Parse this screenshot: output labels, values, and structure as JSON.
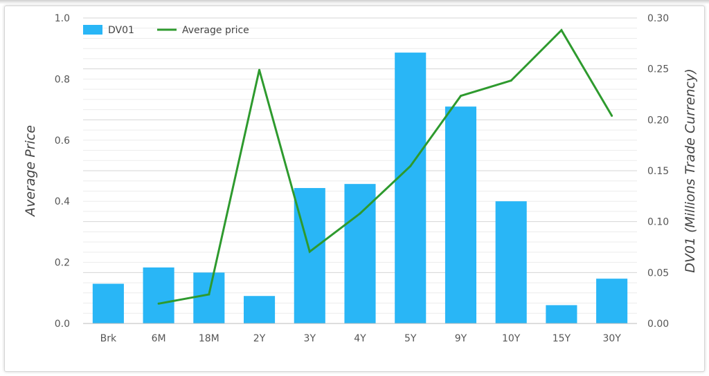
{
  "chart_data": {
    "type": "bar",
    "categories": [
      "Brk",
      "6M",
      "18M",
      "2Y",
      "3Y",
      "4Y",
      "5Y",
      "9Y",
      "10Y",
      "15Y",
      "30Y"
    ],
    "series": [
      {
        "name": "DV01",
        "type": "bar",
        "axis": "right",
        "values": [
          0.039,
          0.055,
          0.05,
          0.027,
          0.133,
          0.137,
          0.266,
          0.213,
          0.12,
          0.018,
          0.044
        ]
      },
      {
        "name": "Average price",
        "type": "line",
        "axis": "left",
        "values": [
          null,
          0.065,
          0.095,
          0.83,
          0.235,
          0.36,
          0.515,
          0.745,
          0.795,
          0.96,
          0.68
        ]
      }
    ],
    "ylabel_left": "Average Price",
    "ylabel_right": "DV01 (Millions Trade Currency)",
    "ylim_left": [
      0,
      1.0
    ],
    "ylim_right": [
      0,
      0.3
    ],
    "yticks_left": [
      "0.0",
      "0.2",
      "0.4",
      "0.6",
      "0.8",
      "1.0"
    ],
    "yticks_right": [
      "0.00",
      "0.05",
      "0.10",
      "0.15",
      "0.20",
      "0.25",
      "0.30"
    ],
    "grid": true,
    "legend_position": "top-left",
    "colors": {
      "bar": "#29b6f6",
      "line": "#2e9a2e",
      "grid": "#dddddd"
    }
  }
}
